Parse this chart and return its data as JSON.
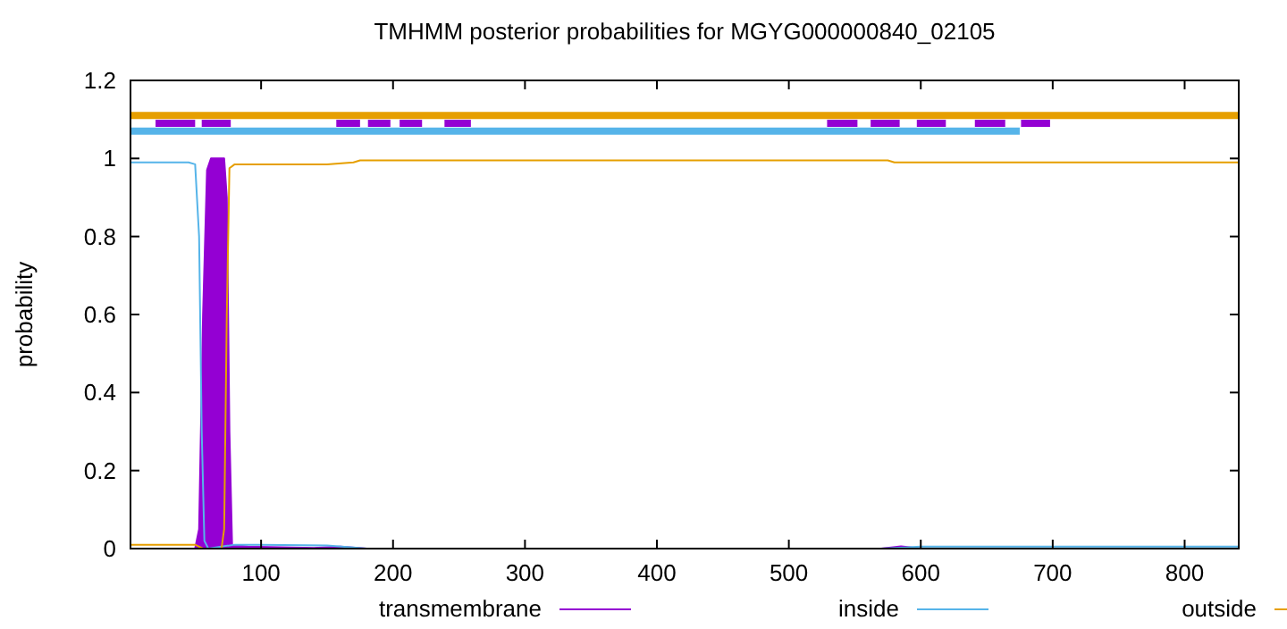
{
  "chart_data": {
    "type": "line",
    "title": "TMHMM posterior probabilities for MGYG000000840_02105",
    "ylabel": "probability",
    "xlim": [
      1,
      841
    ],
    "ylim": [
      0,
      1.2
    ],
    "xticks": [
      100,
      200,
      300,
      400,
      500,
      600,
      700,
      800
    ],
    "yticks": [
      0,
      0.2,
      0.4,
      0.6,
      0.8,
      1,
      1.2
    ],
    "grid": false,
    "legend": "bottom",
    "series": [
      {
        "name": "transmembrane",
        "type": "area",
        "color": "#9400d3",
        "x": [
          1,
          50,
          53,
          56,
          59,
          62,
          72,
          74,
          76,
          78,
          90,
          140,
          160,
          180,
          570,
          585,
          600,
          841
        ],
        "values": [
          0,
          0,
          0.05,
          0.6,
          0.97,
          1,
          1,
          0.9,
          0.3,
          0.01,
          0.005,
          0.002,
          0.005,
          0,
          0,
          0.006,
          0,
          0
        ]
      },
      {
        "name": "inside",
        "color": "#56b4e9",
        "x": [
          1,
          45,
          50,
          53,
          55,
          57,
          60,
          80,
          100,
          150,
          170,
          180,
          570,
          600,
          841
        ],
        "values": [
          0.99,
          0.99,
          0.985,
          0.8,
          0.3,
          0.02,
          0,
          0.01,
          0.01,
          0.008,
          0.003,
          0,
          0,
          0.005,
          0.005
        ]
      },
      {
        "name": "outside",
        "color": "#e69f00",
        "x": [
          1,
          50,
          53,
          56,
          70,
          72,
          74,
          76,
          80,
          150,
          170,
          175,
          575,
          580,
          841
        ],
        "values": [
          0.01,
          0.01,
          0.005,
          0,
          0,
          0.05,
          0.6,
          0.975,
          0.985,
          0.985,
          0.99,
          0.995,
          0.995,
          0.99,
          0.99
        ]
      },
      {
        "color": "#56b4e9",
        "x": [
          1,
          675
        ],
        "values": [
          1.07,
          1.07
        ]
      },
      {
        "color": "#e69f00",
        "x": [
          1,
          841
        ],
        "values": [
          1.11,
          1.11
        ]
      },
      {
        "color": "#9400d3",
        "x": [
          20,
          50,
          52,
          55,
          77,
          117,
          157,
          175,
          178,
          181,
          198,
          201,
          205,
          222,
          230,
          239,
          259,
          394,
          529,
          552,
          557,
          562,
          584,
          590,
          597,
          619,
          630,
          641,
          664,
          670,
          676,
          698
        ],
        "values": [
          1.09,
          1.09,
          null,
          1.09,
          1.09,
          null,
          1.09,
          1.09,
          null,
          1.09,
          1.09,
          null,
          1.09,
          1.09,
          null,
          1.09,
          1.09,
          null,
          1.09,
          1.09,
          null,
          1.09,
          1.09,
          null,
          1.09,
          1.09,
          null,
          1.09,
          1.09,
          null,
          1.09,
          1.09
        ]
      }
    ]
  }
}
